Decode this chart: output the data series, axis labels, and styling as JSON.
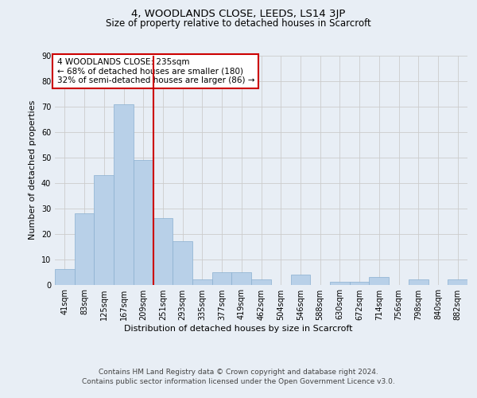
{
  "title": "4, WOODLANDS CLOSE, LEEDS, LS14 3JP",
  "subtitle": "Size of property relative to detached houses in Scarcroft",
  "xlabel": "Distribution of detached houses by size in Scarcroft",
  "ylabel": "Number of detached properties",
  "bin_labels": [
    "41sqm",
    "83sqm",
    "125sqm",
    "167sqm",
    "209sqm",
    "251sqm",
    "293sqm",
    "335sqm",
    "377sqm",
    "419sqm",
    "462sqm",
    "504sqm",
    "546sqm",
    "588sqm",
    "630sqm",
    "672sqm",
    "714sqm",
    "756sqm",
    "798sqm",
    "840sqm",
    "882sqm"
  ],
  "bar_heights": [
    6,
    28,
    43,
    71,
    49,
    26,
    17,
    2,
    5,
    5,
    2,
    0,
    4,
    0,
    1,
    1,
    3,
    0,
    2,
    0,
    2
  ],
  "bar_color": "#b8d0e8",
  "bar_edgecolor": "#8ab0d0",
  "vline_x": 4.5,
  "vline_color": "#cc0000",
  "annotation_text": "4 WOODLANDS CLOSE: 235sqm\n← 68% of detached houses are smaller (180)\n32% of semi-detached houses are larger (86) →",
  "annotation_box_color": "#ffffff",
  "annotation_box_edgecolor": "#cc0000",
  "ylim": [
    0,
    90
  ],
  "yticks": [
    0,
    10,
    20,
    30,
    40,
    50,
    60,
    70,
    80,
    90
  ],
  "grid_color": "#cccccc",
  "background_color": "#e8eef5",
  "plot_background": "#e8eef5",
  "footer_line1": "Contains HM Land Registry data © Crown copyright and database right 2024.",
  "footer_line2": "Contains public sector information licensed under the Open Government Licence v3.0.",
  "title_fontsize": 9.5,
  "subtitle_fontsize": 8.5,
  "axis_label_fontsize": 8,
  "tick_fontsize": 7,
  "annotation_fontsize": 7.5,
  "footer_fontsize": 6.5
}
